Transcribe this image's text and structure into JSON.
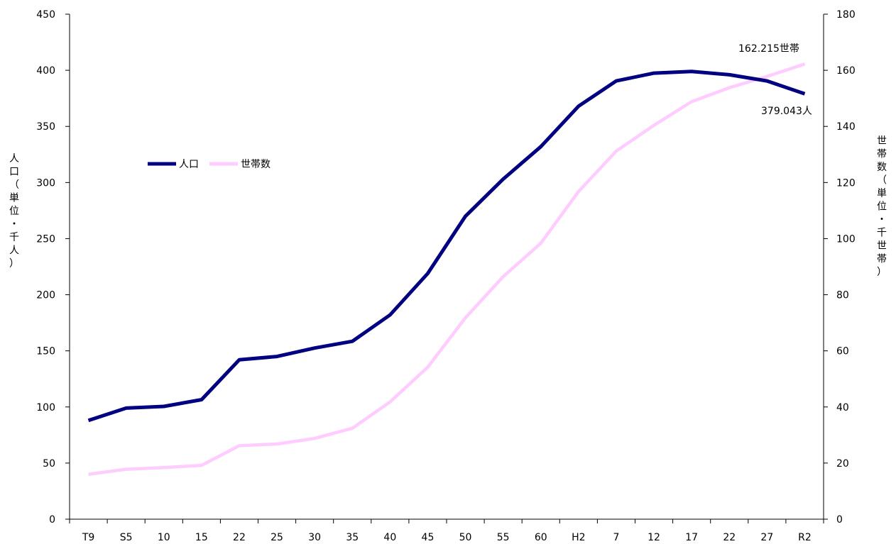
{
  "chart_data": {
    "type": "line",
    "categories": [
      "T9",
      "S5",
      "10",
      "15",
      "22",
      "25",
      "30",
      "35",
      "40",
      "45",
      "50",
      "55",
      "60",
      "H2",
      "7",
      "12",
      "17",
      "22",
      "27",
      "R2"
    ],
    "series": [
      {
        "name": "人口",
        "axis": "left",
        "color": "#000080",
        "values": [
          88,
          99,
          100.5,
          106.5,
          142,
          145,
          152.5,
          158.5,
          182,
          219,
          270,
          303,
          332,
          368,
          390.5,
          397.5,
          399,
          396,
          390.5,
          379.043
        ]
      },
      {
        "name": "世帯数",
        "axis": "right",
        "color": "#ffccff",
        "values": [
          16,
          17.8,
          18.4,
          19.2,
          26.2,
          26.8,
          28.8,
          32.4,
          41.8,
          54.2,
          71.8,
          86.4,
          98.4,
          116.8,
          131.2,
          140.4,
          148.8,
          153.8,
          157.8,
          162.215
        ]
      }
    ],
    "ylabel_left": "人口（単位・千人）",
    "ylabel_right": "世帯数（単位・千世帯）",
    "ylim_left": [
      0,
      450
    ],
    "ylim_right": [
      0,
      180
    ],
    "yticks_left": [
      "0",
      "50",
      "100",
      "150",
      "200",
      "250",
      "300",
      "350",
      "400",
      "450"
    ],
    "yticks_right": [
      "0",
      "20",
      "40",
      "60",
      "80",
      "100",
      "120",
      "140",
      "160",
      "180"
    ],
    "grid": false,
    "legend_position": "upper-left",
    "annotations": {
      "population_end": "379.043人",
      "households_end": "162.215世帯"
    }
  }
}
